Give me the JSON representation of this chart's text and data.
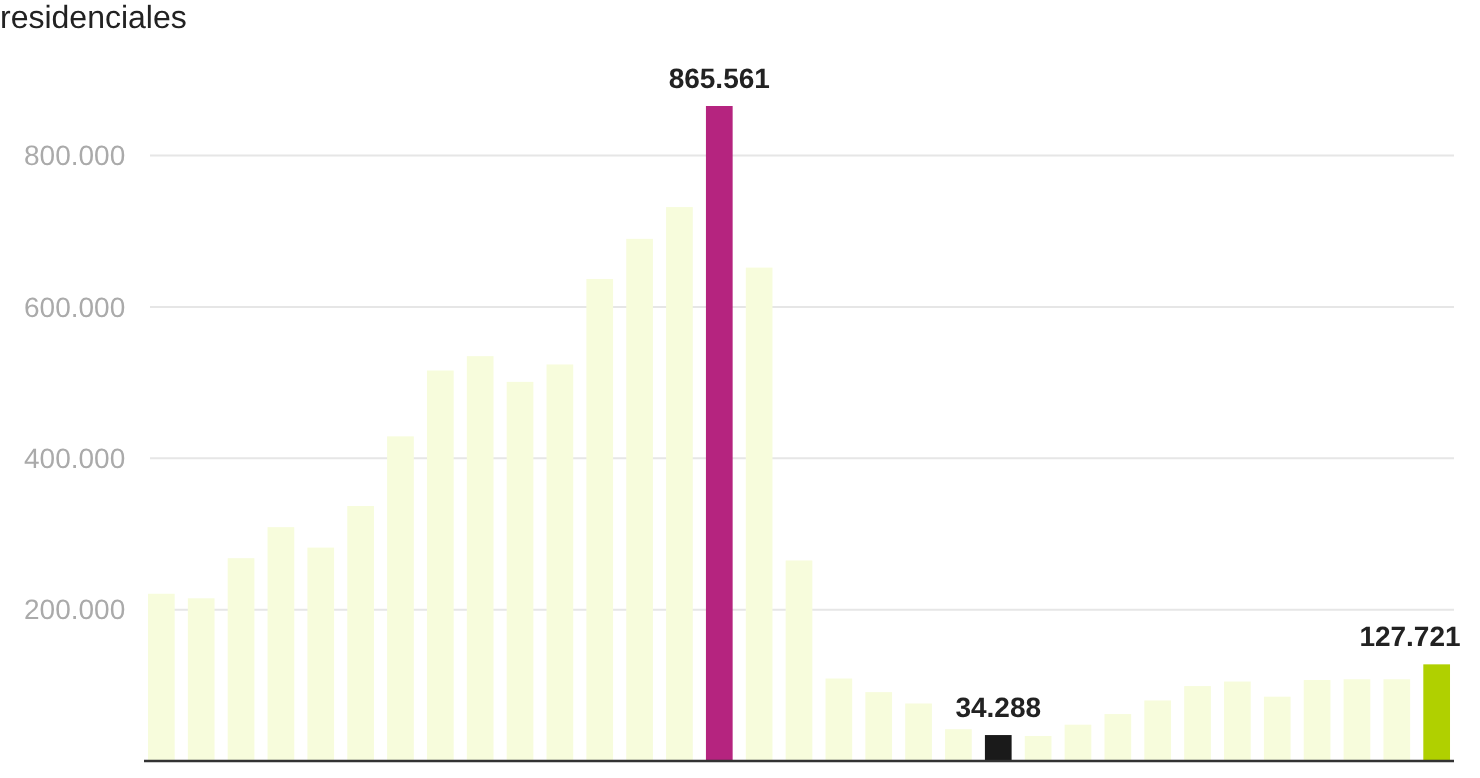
{
  "chart_data": {
    "type": "bar",
    "title": "residenciales",
    "categories": [
      null,
      null,
      null,
      null,
      null,
      null,
      null,
      null,
      null,
      null,
      null,
      null,
      null,
      null,
      null,
      null,
      null,
      null,
      null,
      null,
      null,
      null,
      null,
      null,
      null,
      null,
      null,
      null,
      null,
      null,
      null,
      null,
      null
    ],
    "values": [
      221000,
      215000,
      268000,
      309000,
      282000,
      337000,
      429000,
      516000,
      535000,
      501000,
      524000,
      637000,
      690000,
      732000,
      865561,
      652000,
      265000,
      109000,
      91000,
      76000,
      42000,
      34288,
      33000,
      48000,
      62000,
      80000,
      99000,
      105000,
      85000,
      107000,
      108000,
      108000,
      127721
    ],
    "colors": [
      "#f7fcdc",
      "#f7fcdc",
      "#f7fcdc",
      "#f7fcdc",
      "#f7fcdc",
      "#f7fcdc",
      "#f7fcdc",
      "#f7fcdc",
      "#f7fcdc",
      "#f7fcdc",
      "#f7fcdc",
      "#f7fcdc",
      "#f7fcdc",
      "#f7fcdc",
      "#b5247f",
      "#f7fcdc",
      "#f7fcdc",
      "#f7fcdc",
      "#f7fcdc",
      "#f7fcdc",
      "#f7fcdc",
      "#1a1a1a",
      "#f7fcdc",
      "#f7fcdc",
      "#f7fcdc",
      "#f7fcdc",
      "#f7fcdc",
      "#f7fcdc",
      "#f7fcdc",
      "#f7fcdc",
      "#f7fcdc",
      "#f7fcdc",
      "#b0d000"
    ],
    "value_labels": [
      null,
      null,
      null,
      null,
      null,
      null,
      null,
      null,
      null,
      null,
      null,
      null,
      null,
      null,
      "865.561",
      null,
      null,
      null,
      null,
      null,
      null,
      "34.288",
      null,
      null,
      null,
      null,
      null,
      null,
      null,
      null,
      null,
      null,
      "127.721"
    ],
    "ylim": [
      0,
      865561
    ],
    "yticks": [
      {
        "value": 200000,
        "label": "200.000"
      },
      {
        "value": 400000,
        "label": "400.000"
      },
      {
        "value": 600000,
        "label": "600.000"
      },
      {
        "value": 800000,
        "label": "800.000"
      }
    ],
    "grid": "y"
  }
}
